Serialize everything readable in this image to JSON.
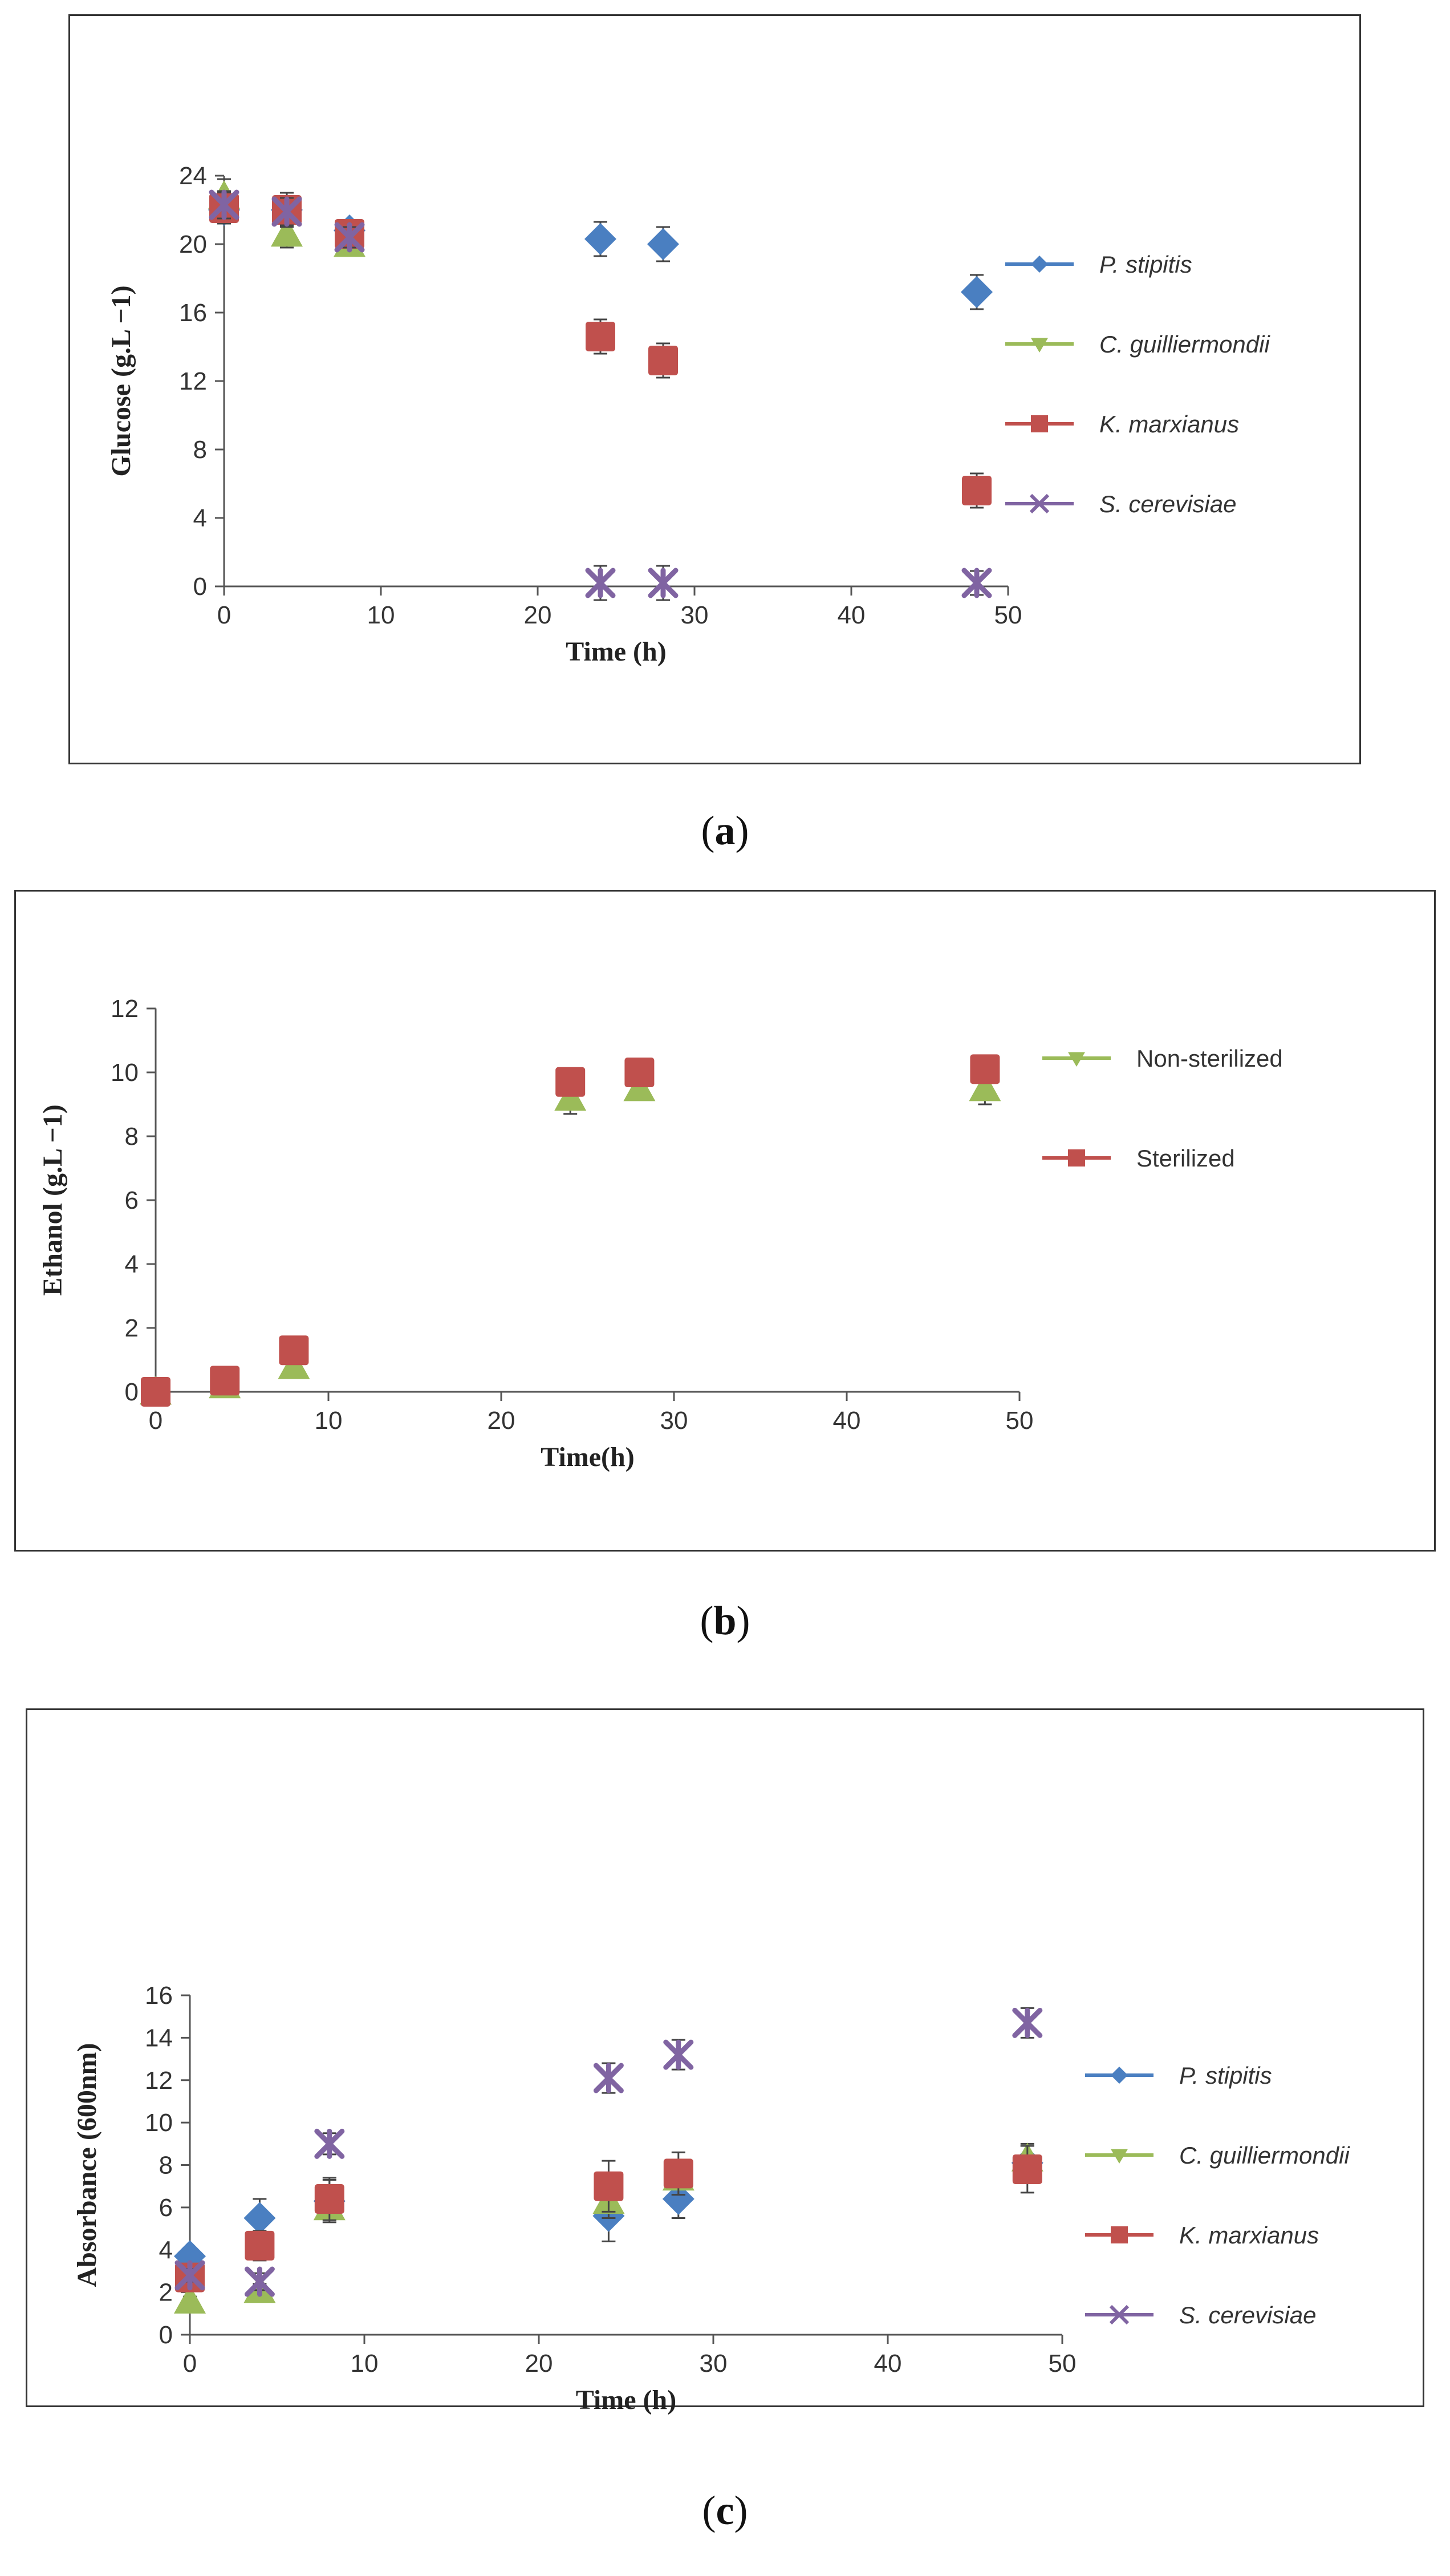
{
  "figure": {
    "captions": [
      "a",
      "b",
      "c"
    ]
  },
  "chart_data": [
    {
      "id": "a",
      "type": "scatter",
      "xlabel": "Time (h)",
      "ylabel": "Glucose (g.L −1)",
      "xlim": [
        0,
        50
      ],
      "ylim": [
        0,
        24
      ],
      "xticks": [
        0,
        10,
        20,
        30,
        40,
        50
      ],
      "yticks": [
        0,
        4,
        8,
        12,
        16,
        20,
        24
      ],
      "legend_position": "right",
      "legend_italic": true,
      "x": [
        0,
        4,
        8,
        24,
        28,
        48
      ],
      "series": [
        {
          "name": "P. stipitis",
          "marker": "diamond",
          "color": "#4a7fc1",
          "values": [
            22.0,
            22.0,
            20.8,
            20.3,
            20.0,
            17.2
          ],
          "errors": [
            0.8,
            0.8,
            0.6,
            1.0,
            1.0,
            1.0
          ]
        },
        {
          "name": "C. guilliermondii",
          "marker": "triangle",
          "color": "#9bbb59",
          "values": [
            22.8,
            20.6,
            20.0,
            null,
            null,
            null
          ],
          "errors": [
            1.0,
            0.8,
            0.6,
            null,
            null,
            null
          ]
        },
        {
          "name": "K. marxianus",
          "marker": "square",
          "color": "#c0504d",
          "values": [
            22.1,
            22.0,
            20.6,
            14.6,
            13.2,
            5.6
          ],
          "errors": [
            0.9,
            1.0,
            0.7,
            1.0,
            1.0,
            1.0
          ]
        },
        {
          "name": "S. cerevisiae",
          "marker": "asterisk",
          "color": "#8064a2",
          "values": [
            22.3,
            21.9,
            20.4,
            0.2,
            0.2,
            0.2
          ],
          "errors": [
            0.8,
            0.8,
            0.6,
            1.0,
            1.0,
            0.7
          ]
        }
      ]
    },
    {
      "id": "b",
      "type": "scatter",
      "xlabel": "Time(h)",
      "ylabel": "Ethanol (g.L −1)",
      "xlim": [
        0,
        50
      ],
      "ylim": [
        0,
        12
      ],
      "xticks": [
        0,
        10,
        20,
        30,
        40,
        50
      ],
      "yticks": [
        0,
        2,
        4,
        6,
        8,
        10,
        12
      ],
      "legend_position": "right",
      "legend_italic": false,
      "x": [
        0,
        4,
        8,
        24,
        28,
        48
      ],
      "series": [
        {
          "name": "Non-sterilized",
          "marker": "triangle",
          "color": "#9bbb59",
          "values": [
            0.0,
            0.2,
            0.8,
            9.2,
            9.5,
            9.5
          ],
          "errors": [
            0.1,
            0.1,
            0.2,
            0.5,
            0.3,
            0.5
          ]
        },
        {
          "name": "Sterilized",
          "marker": "square",
          "color": "#c0504d",
          "values": [
            0.0,
            0.35,
            1.3,
            9.7,
            10.0,
            10.1
          ],
          "errors": [
            0.1,
            0.1,
            0.2,
            0.3,
            0.3,
            0.3
          ]
        }
      ]
    },
    {
      "id": "c",
      "type": "scatter",
      "xlabel": "Time (h)",
      "ylabel": "Absorbance (600nm)",
      "xlim": [
        0,
        50
      ],
      "ylim": [
        0,
        16
      ],
      "xticks": [
        0,
        10,
        20,
        30,
        40,
        50
      ],
      "yticks": [
        0,
        2,
        4,
        6,
        8,
        10,
        12,
        14,
        16
      ],
      "legend_position": "right",
      "legend_italic": true,
      "x": [
        0,
        4,
        8,
        24,
        28,
        48
      ],
      "series": [
        {
          "name": "P. stipitis",
          "marker": "diamond",
          "color": "#4a7fc1",
          "values": [
            3.7,
            5.5,
            6.3,
            5.6,
            6.4,
            8.1
          ],
          "errors": [
            0.3,
            0.9,
            1.0,
            1.2,
            0.9,
            0.8
          ]
        },
        {
          "name": "C. guilliermondii",
          "marker": "triangle",
          "color": "#9bbb59",
          "values": [
            1.6,
            2.1,
            6.0,
            6.3,
            7.4,
            8.3
          ],
          "errors": [
            0.2,
            0.3,
            0.5,
            0.8,
            0.8,
            0.7
          ]
        },
        {
          "name": "K. marxianus",
          "marker": "square",
          "color": "#c0504d",
          "values": [
            2.7,
            4.2,
            6.4,
            7.0,
            7.6,
            7.8
          ],
          "errors": [
            0.3,
            0.7,
            1.0,
            1.2,
            1.0,
            1.1
          ]
        },
        {
          "name": "S. cerevisiae",
          "marker": "asterisk",
          "color": "#8064a2",
          "values": [
            2.8,
            2.5,
            9.0,
            12.1,
            13.2,
            14.7
          ],
          "errors": [
            0.3,
            0.4,
            0.5,
            0.7,
            0.7,
            0.7
          ]
        }
      ]
    }
  ]
}
